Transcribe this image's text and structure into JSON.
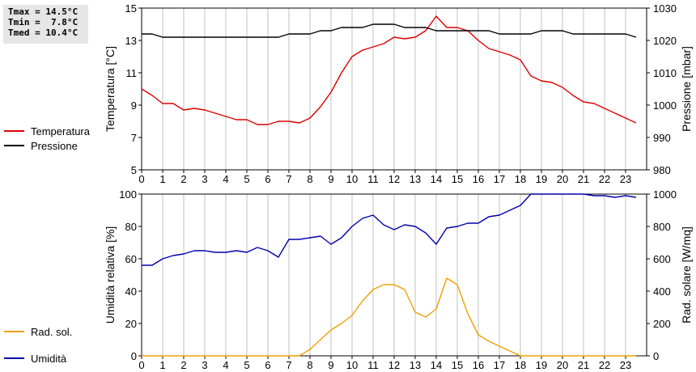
{
  "stats": {
    "tmax": "Tmax = 14.5°C",
    "tmin": "Tmin =  7.8°C",
    "tmed": "Tmed = 10.4°C"
  },
  "chart_data": [
    {
      "type": "line",
      "x": [
        0,
        0.5,
        1,
        1.5,
        2,
        2.5,
        3,
        3.5,
        4,
        4.5,
        5,
        5.5,
        6,
        6.5,
        7,
        7.5,
        8,
        8.5,
        9,
        9.5,
        10,
        10.5,
        11,
        11.5,
        12,
        12.5,
        13,
        13.5,
        14,
        14.5,
        15,
        15.5,
        16,
        16.5,
        17,
        17.5,
        18,
        18.5,
        19,
        19.5,
        20,
        20.5,
        21,
        21.5,
        22,
        22.5,
        23,
        23.5
      ],
      "xticks": [
        "0",
        "1",
        "2",
        "3",
        "4",
        "5",
        "6",
        "7",
        "8",
        "9",
        "10",
        "11",
        "12",
        "13",
        "14",
        "15",
        "16",
        "17",
        "18",
        "19",
        "20",
        "21",
        "22",
        "23"
      ],
      "xlim": [
        0,
        24
      ],
      "ylabel": "Temperatura [°C]",
      "ylim": [
        5,
        15
      ],
      "yticks": [
        "5",
        "7",
        "9",
        "11",
        "13",
        "15"
      ],
      "y2label": "Pressione [mbar]",
      "y2lim": [
        980,
        1030
      ],
      "y2ticks": [
        "980",
        "990",
        "1000",
        "1010",
        "1020",
        "1030"
      ],
      "series": [
        {
          "name": "Temperatura",
          "axis": "left",
          "color": "#dd0000",
          "values": [
            10.0,
            9.6,
            9.1,
            9.1,
            8.7,
            8.8,
            8.7,
            8.5,
            8.3,
            8.1,
            8.1,
            7.8,
            7.8,
            8.0,
            8.0,
            7.9,
            8.2,
            8.9,
            9.8,
            11.0,
            12.0,
            12.4,
            12.6,
            12.8,
            13.2,
            13.1,
            13.2,
            13.6,
            14.5,
            13.8,
            13.8,
            13.6,
            13.0,
            12.5,
            12.3,
            12.1,
            11.8,
            10.8,
            10.5,
            10.4,
            10.1,
            9.6,
            9.2,
            9.1,
            8.8,
            8.5,
            8.2,
            7.9
          ]
        },
        {
          "name": "Pressione",
          "axis": "right",
          "color": "#000000",
          "values": [
            1022,
            1022,
            1021,
            1021,
            1021,
            1021,
            1021,
            1021,
            1021,
            1021,
            1021,
            1021,
            1021,
            1021,
            1022,
            1022,
            1022,
            1023,
            1023,
            1024,
            1024,
            1024,
            1025,
            1025,
            1025,
            1024,
            1024,
            1024,
            1023,
            1023,
            1023,
            1023,
            1023,
            1023,
            1022,
            1022,
            1022,
            1022,
            1023,
            1023,
            1023,
            1022,
            1022,
            1022,
            1022,
            1022,
            1022,
            1021
          ]
        }
      ],
      "legend_position": "left"
    },
    {
      "type": "line",
      "x": [
        0,
        0.5,
        1,
        1.5,
        2,
        2.5,
        3,
        3.5,
        4,
        4.5,
        5,
        5.5,
        6,
        6.5,
        7,
        7.5,
        8,
        8.5,
        9,
        9.5,
        10,
        10.5,
        11,
        11.5,
        12,
        12.5,
        13,
        13.5,
        14,
        14.5,
        15,
        15.5,
        16,
        16.5,
        17,
        17.5,
        18,
        18.5,
        19,
        19.5,
        20,
        20.5,
        21,
        21.5,
        22,
        22.5,
        23,
        23.5
      ],
      "xticks": [
        "0",
        "1",
        "2",
        "3",
        "4",
        "5",
        "6",
        "7",
        "8",
        "9",
        "10",
        "11",
        "12",
        "13",
        "14",
        "15",
        "16",
        "17",
        "18",
        "19",
        "20",
        "21",
        "22",
        "23"
      ],
      "xlim": [
        0,
        24
      ],
      "ylabel": "Umidità relativa [%]",
      "ylim": [
        0,
        100
      ],
      "yticks": [
        "0",
        "20",
        "40",
        "60",
        "80",
        "100"
      ],
      "y2label": "Rad. solare [W/mq]",
      "y2lim": [
        0,
        1000
      ],
      "y2ticks": [
        "0",
        "200",
        "400",
        "600",
        "800",
        "1000"
      ],
      "series": [
        {
          "name": "Umidità",
          "axis": "left",
          "color": "#0000aa",
          "values": [
            56,
            56,
            60,
            62,
            63,
            65,
            65,
            64,
            64,
            65,
            64,
            67,
            65,
            61,
            72,
            72,
            73,
            74,
            69,
            73,
            80,
            85,
            87,
            81,
            78,
            81,
            80,
            76,
            69,
            79,
            80,
            82,
            82,
            86,
            87,
            90,
            93,
            100,
            100,
            100,
            100,
            100,
            100,
            99,
            99,
            98,
            99,
            98
          ]
        },
        {
          "name": "Rad. sol.",
          "axis": "right",
          "color": "#f0a000",
          "values": [
            0,
            0,
            0,
            0,
            0,
            0,
            0,
            0,
            0,
            0,
            0,
            0,
            0,
            0,
            0,
            0,
            40,
            100,
            160,
            200,
            250,
            340,
            410,
            440,
            440,
            410,
            270,
            240,
            290,
            480,
            440,
            260,
            130,
            90,
            60,
            30,
            0,
            0,
            0,
            0,
            0,
            0,
            0,
            0,
            0,
            0,
            0,
            0
          ]
        }
      ],
      "legend_position": "left"
    }
  ]
}
